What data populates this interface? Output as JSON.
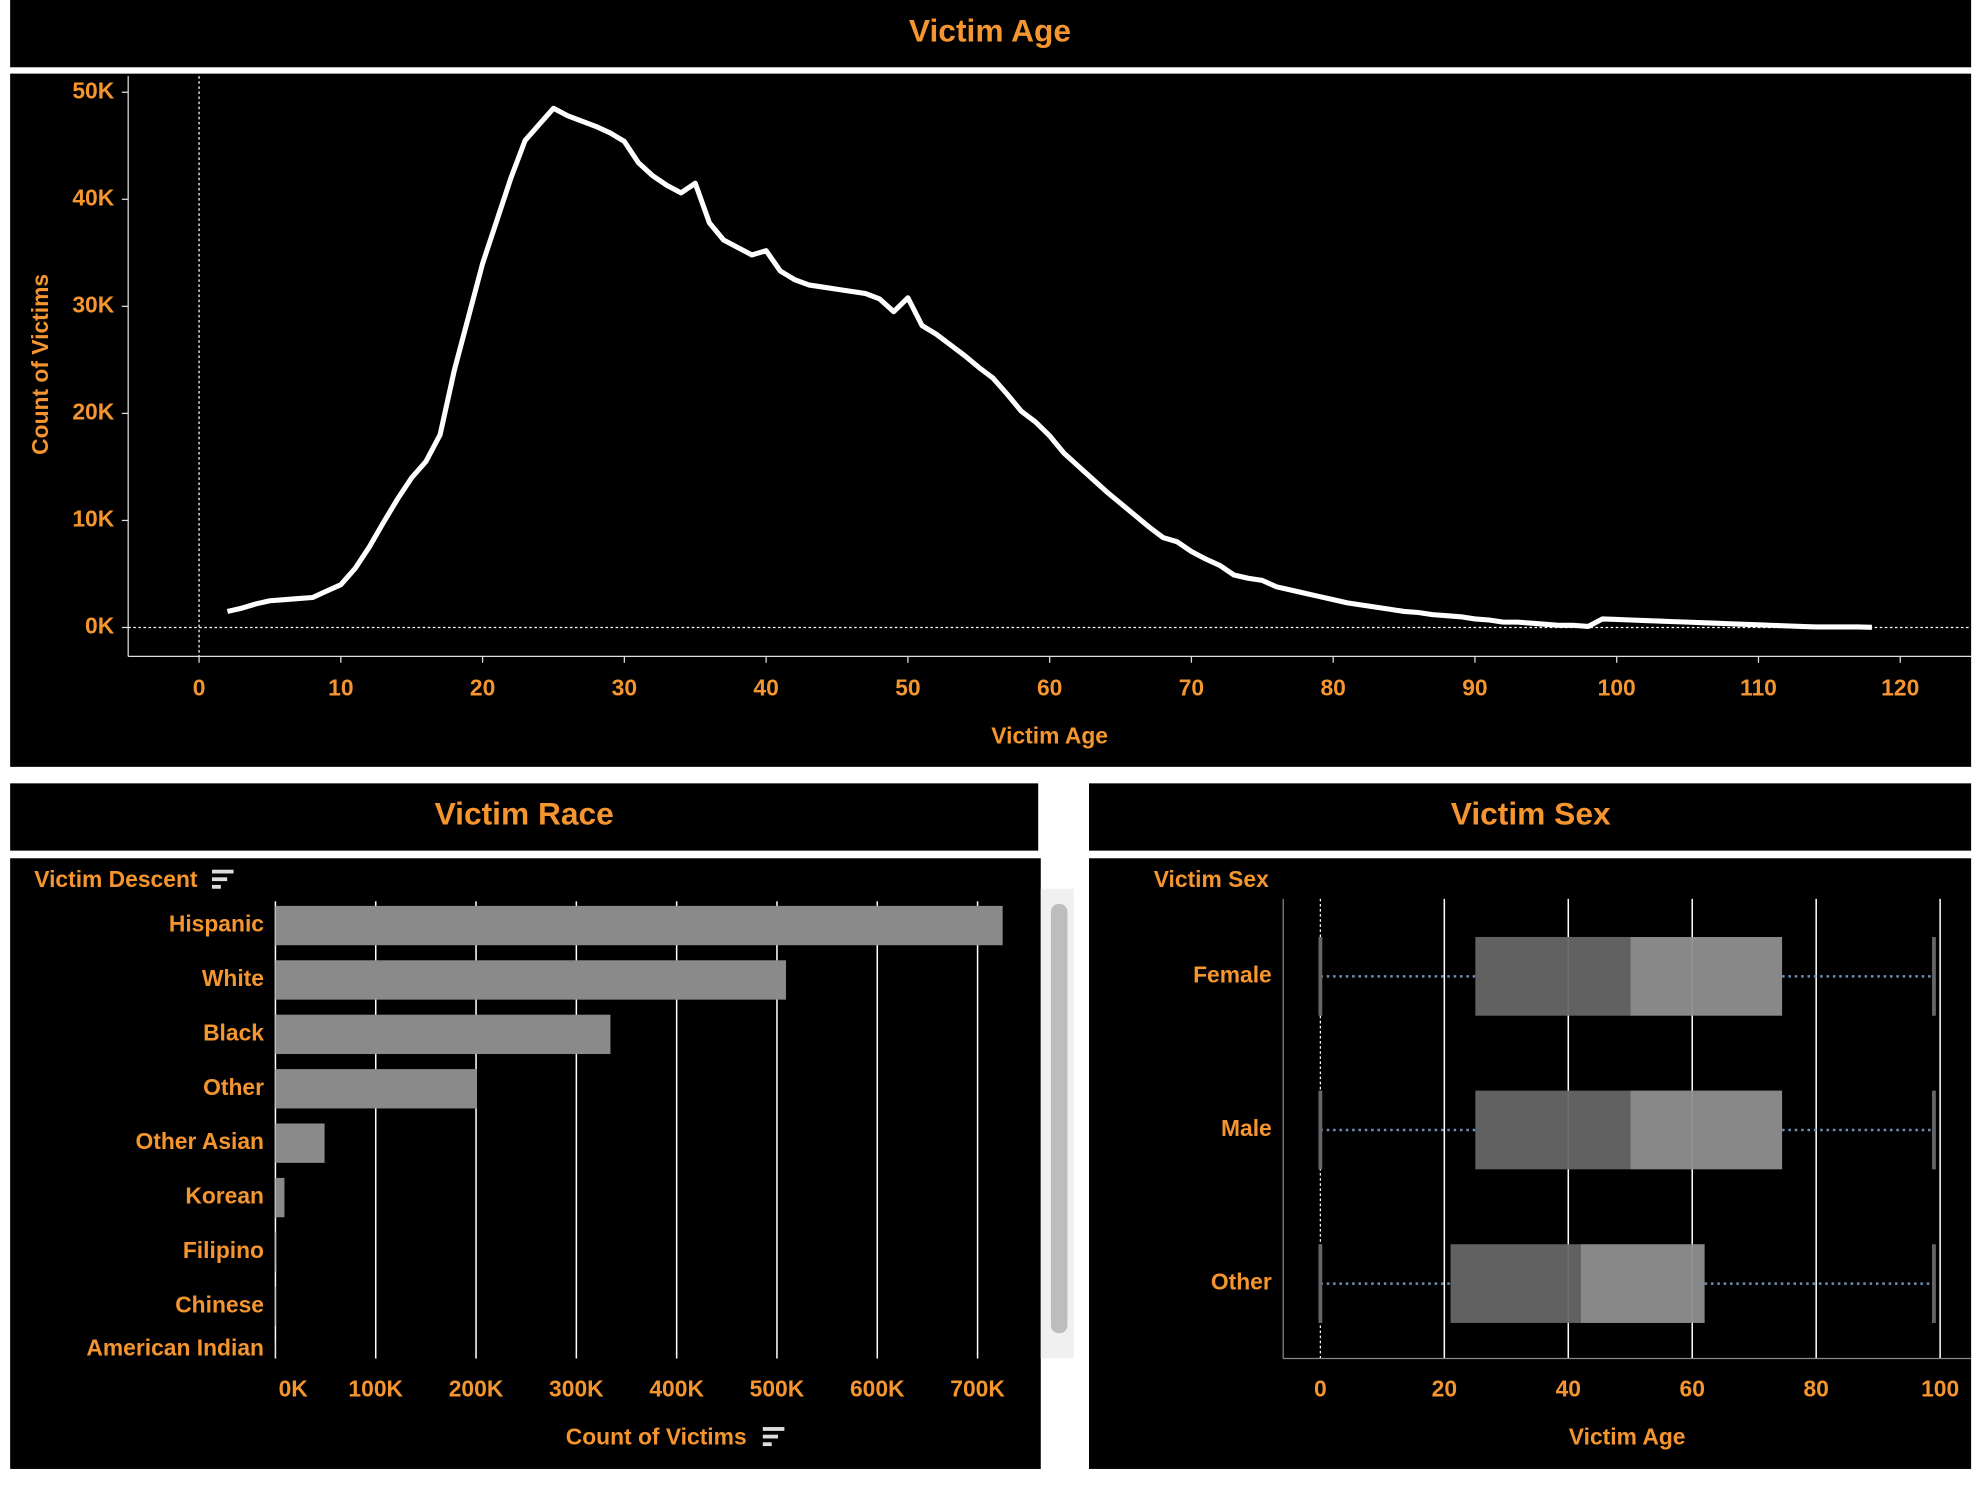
{
  "chart_data": [
    {
      "type": "line",
      "title": "Victim Age",
      "xlabel": "Victim Age",
      "ylabel": "Count of Victims",
      "color": "#ffffff",
      "x": [
        2,
        3,
        4,
        5,
        6,
        7,
        8,
        9,
        10,
        11,
        12,
        13,
        14,
        15,
        16,
        17,
        18,
        19,
        20,
        21,
        22,
        23,
        24,
        25,
        26,
        27,
        28,
        29,
        30,
        31,
        32,
        33,
        34,
        35,
        36,
        37,
        38,
        39,
        40,
        41,
        42,
        43,
        44,
        45,
        46,
        47,
        48,
        49,
        50,
        51,
        52,
        53,
        54,
        55,
        56,
        57,
        58,
        59,
        60,
        61,
        62,
        63,
        64,
        65,
        66,
        67,
        68,
        69,
        70,
        71,
        72,
        73,
        74,
        75,
        76,
        77,
        78,
        79,
        80,
        81,
        82,
        83,
        84,
        85,
        86,
        87,
        88,
        89,
        90,
        91,
        92,
        93,
        94,
        95,
        96,
        97,
        98,
        99,
        100,
        101,
        102,
        103,
        104,
        105,
        106,
        107,
        108,
        109,
        110,
        111,
        112,
        113,
        114,
        115,
        116,
        117,
        118
      ],
      "values": [
        1500,
        1800,
        2200,
        2500,
        2600,
        2700,
        2800,
        3400,
        4000,
        5500,
        7500,
        9800,
        12000,
        14000,
        15500,
        18000,
        24000,
        29000,
        34000,
        38000,
        42000,
        45500,
        47000,
        48500,
        47800,
        47300,
        46800,
        46200,
        45400,
        43400,
        42200,
        41300,
        40600,
        41500,
        37800,
        36200,
        35500,
        34800,
        35200,
        33300,
        32500,
        32000,
        31800,
        31600,
        31400,
        31200,
        30700,
        29500,
        30800,
        28200,
        27400,
        26400,
        25400,
        24300,
        23300,
        21800,
        20200,
        19200,
        17900,
        16300,
        15100,
        13900,
        12700,
        11600,
        10500,
        9400,
        8400,
        8000,
        7100,
        6400,
        5800,
        4900,
        4600,
        4400,
        3800,
        3500,
        3200,
        2900,
        2600,
        2300,
        2100,
        1900,
        1700,
        1500,
        1400,
        1200,
        1100,
        1000,
        800,
        700,
        500,
        500,
        400,
        300,
        200,
        200,
        100,
        800,
        750,
        700,
        650,
        600,
        550,
        500,
        450,
        400,
        350,
        300,
        250,
        200,
        150,
        100,
        50,
        50,
        50,
        50,
        20
      ],
      "xlim": [
        -5,
        125
      ],
      "xticks": [
        0,
        10,
        20,
        30,
        40,
        50,
        60,
        70,
        80,
        90,
        100,
        110,
        120
      ],
      "ylim": [
        -2700,
        51500
      ],
      "yticks": [
        {
          "value": 0,
          "label": "0K"
        },
        {
          "value": 10000,
          "label": "10K"
        },
        {
          "value": 20000,
          "label": "20K"
        },
        {
          "value": 30000,
          "label": "30K"
        },
        {
          "value": 40000,
          "label": "40K"
        },
        {
          "value": 50000,
          "label": "50K"
        }
      ]
    },
    {
      "type": "hbar",
      "title": "Victim Race",
      "ylabel": "Victim Descent",
      "xlabel": "Count of Victims",
      "color": "#8a8a8a",
      "categories": [
        "Hispanic",
        "White",
        "Black",
        "Other",
        "Other Asian",
        "Korean",
        "Filipino",
        "Chinese",
        "American Indian"
      ],
      "values": [
        725000,
        509000,
        334000,
        201000,
        49000,
        9000,
        1000,
        500,
        200
      ],
      "xlim": [
        0,
        763000
      ],
      "grid": true,
      "xticks": [
        {
          "value": 0,
          "label": "0K"
        },
        {
          "value": 100000,
          "label": "100K"
        },
        {
          "value": 200000,
          "label": "200K"
        },
        {
          "value": 300000,
          "label": "300K"
        },
        {
          "value": 400000,
          "label": "400K"
        },
        {
          "value": 500000,
          "label": "500K"
        },
        {
          "value": 600000,
          "label": "600K"
        },
        {
          "value": 700000,
          "label": "700K"
        }
      ]
    },
    {
      "type": "box",
      "title": "Victim Sex",
      "ylabel": "Victim Sex",
      "xlabel": "Victim Age",
      "color": "#8f8f8f",
      "categories": [
        "Female",
        "Male",
        "Other"
      ],
      "min": [
        0,
        0,
        0
      ],
      "q1": [
        25,
        25,
        21
      ],
      "median": [
        50,
        50,
        42
      ],
      "q3": [
        74.5,
        74.5,
        62
      ],
      "max": [
        99,
        99,
        99
      ],
      "xlim": [
        -6,
        105
      ],
      "xticks": [
        0,
        20,
        40,
        60,
        80,
        100
      ],
      "grid": true
    }
  ]
}
